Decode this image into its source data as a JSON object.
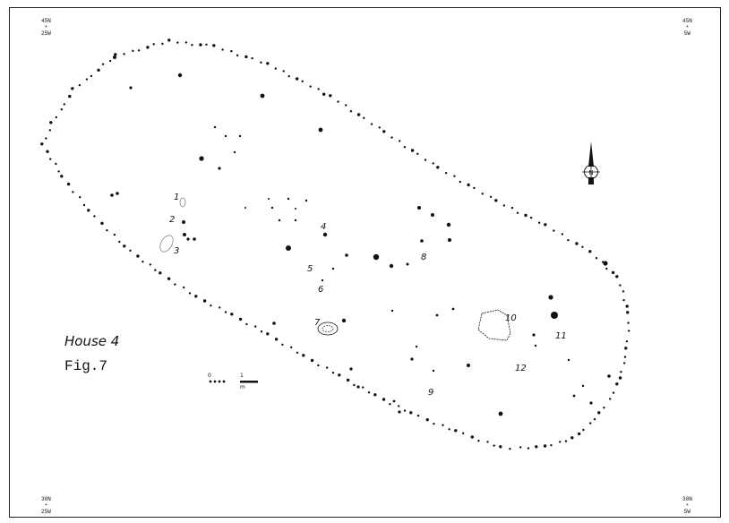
{
  "figure": {
    "title": "House 4",
    "subtitle": "Fig.7"
  },
  "corners": {
    "top_left": {
      "line1": "45N",
      "line2": "25W"
    },
    "top_right": {
      "line1": "45N",
      "line2": "5W"
    },
    "bottom_left": {
      "line1": "30N",
      "line2": "25W"
    },
    "bottom_right": {
      "line1": "30N",
      "line2": "5W"
    }
  },
  "features": [
    {
      "label": "1"
    },
    {
      "label": "2"
    },
    {
      "label": "3"
    },
    {
      "label": "4"
    },
    {
      "label": "5"
    },
    {
      "label": "6"
    },
    {
      "label": "7"
    },
    {
      "label": "8"
    },
    {
      "label": "9"
    },
    {
      "label": "10"
    },
    {
      "label": "11"
    },
    {
      "label": "12"
    }
  ],
  "scale": {
    "start": "0",
    "end": "1",
    "unit": "m"
  },
  "north_arrow": {
    "letter": "N"
  },
  "colors": {
    "ink": "#111111",
    "paper": "#ffffff",
    "faint": "#888888"
  }
}
